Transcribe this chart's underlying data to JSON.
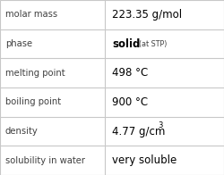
{
  "rows": [
    {
      "label": "molar mass",
      "value": "223.35 g/mol",
      "superscript": null,
      "at_stp": false
    },
    {
      "label": "phase",
      "value": "solid",
      "superscript": null,
      "at_stp": true
    },
    {
      "label": "melting point",
      "value": "498 °C",
      "superscript": null,
      "at_stp": false
    },
    {
      "label": "boiling point",
      "value": "900 °C",
      "superscript": null,
      "at_stp": false
    },
    {
      "label": "density",
      "value": "4.77 g/cm",
      "superscript": "3",
      "at_stp": false
    },
    {
      "label": "solubility in water",
      "value": "very soluble",
      "superscript": null,
      "at_stp": false
    }
  ],
  "col_split": 0.468,
  "background_color": "#ffffff",
  "border_color": "#c8c8c8",
  "label_color": "#404040",
  "value_color": "#000000",
  "label_fontsize": 7.2,
  "value_fontsize": 8.5,
  "stp_fontsize": 5.8
}
